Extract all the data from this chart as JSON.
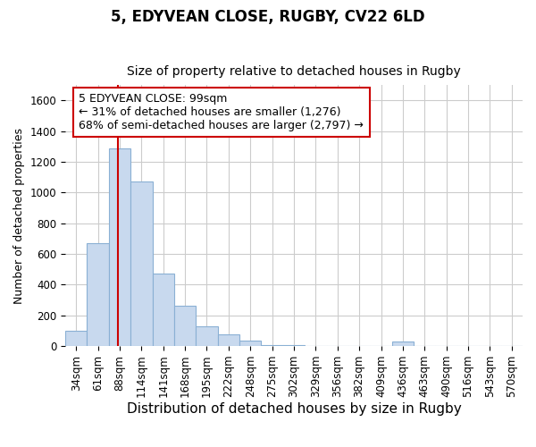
{
  "title1": "5, EDYVEAN CLOSE, RUGBY, CV22 6LD",
  "title2": "Size of property relative to detached houses in Rugby",
  "xlabel": "Distribution of detached houses by size in Rugby",
  "ylabel": "Number of detached properties",
  "bar_labels": [
    "34sqm",
    "61sqm",
    "88sqm",
    "114sqm",
    "141sqm",
    "168sqm",
    "195sqm",
    "222sqm",
    "248sqm",
    "275sqm",
    "302sqm",
    "329sqm",
    "356sqm",
    "382sqm",
    "409sqm",
    "436sqm",
    "463sqm",
    "490sqm",
    "516sqm",
    "543sqm",
    "570sqm"
  ],
  "bar_heights": [
    100,
    670,
    1290,
    1070,
    470,
    265,
    130,
    75,
    35,
    5,
    5,
    0,
    0,
    0,
    0,
    30,
    0,
    0,
    0,
    0,
    0
  ],
  "bar_color": "#c8d9ee",
  "bar_edge_color": "#8ab0d4",
  "bg_color": "#ffffff",
  "plot_bg_color": "#ffffff",
  "grid_color": "#cccccc",
  "vline_color": "#cc0000",
  "annotation_text": "5 EDYVEAN CLOSE: 99sqm\n← 31% of detached houses are smaller (1,276)\n68% of semi-detached houses are larger (2,797) →",
  "annotation_box_color": "#ffffff",
  "annotation_box_edge": "#cc0000",
  "ylim": [
    0,
    1700
  ],
  "yticks": [
    0,
    200,
    400,
    600,
    800,
    1000,
    1200,
    1400,
    1600
  ],
  "title1_fontsize": 12,
  "title2_fontsize": 10,
  "xlabel_fontsize": 11,
  "ylabel_fontsize": 9,
  "tick_fontsize": 8.5,
  "annotation_fontsize": 9
}
